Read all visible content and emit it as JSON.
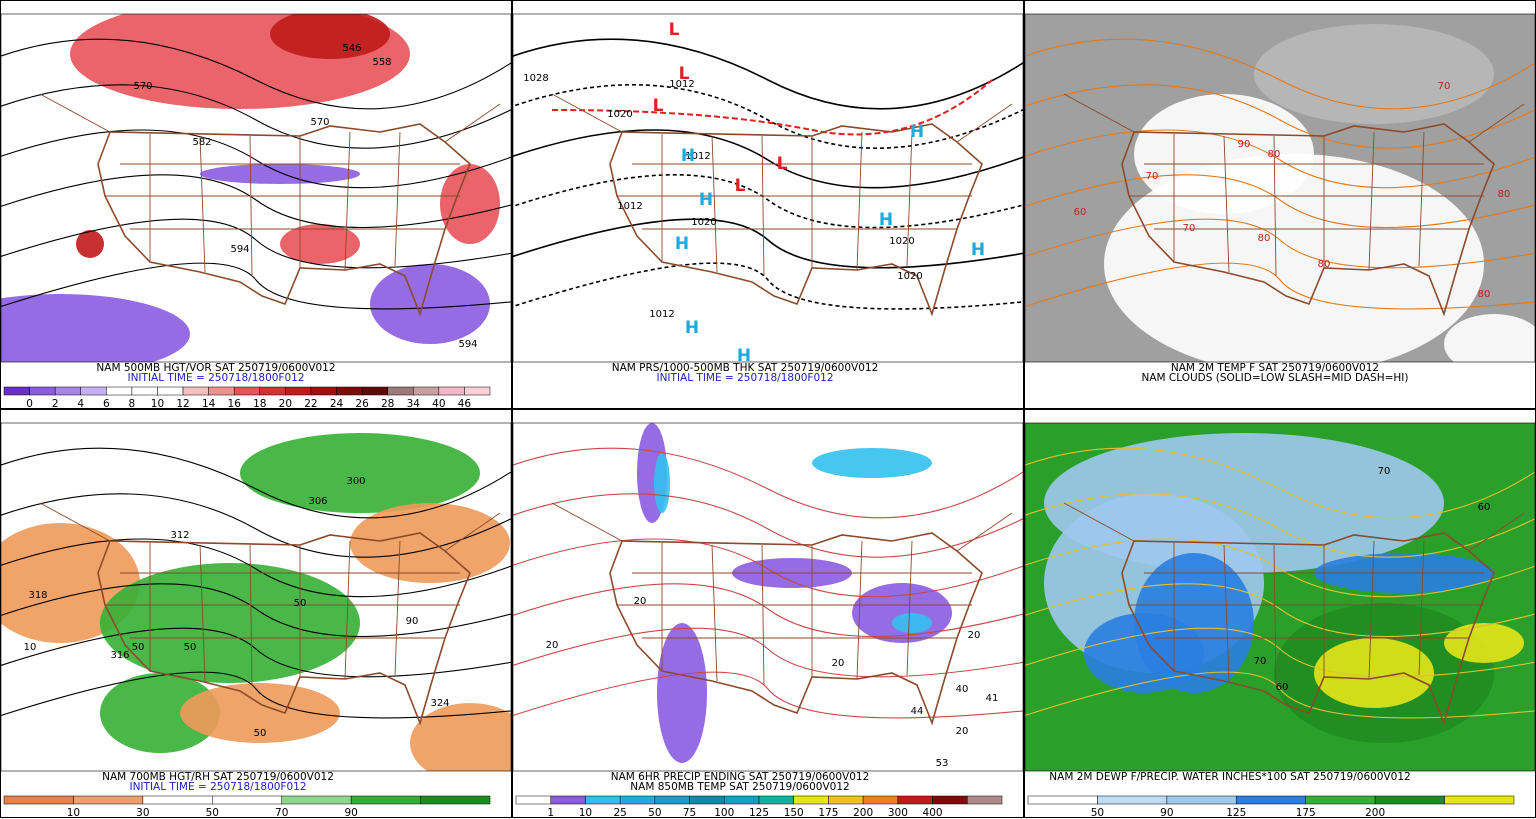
{
  "panels": [
    {
      "caption": [
        "NAM 500MB HGT/VOR SAT 250719/0600V012",
        "INITIAL TIME = 250718/1800F012"
      ],
      "colorbar_labels": [
        "0",
        "2",
        "4",
        "6",
        "8",
        "10",
        "12",
        "14",
        "16",
        "18",
        "20",
        "22",
        "24",
        "26",
        "28",
        "34",
        "40",
        "46"
      ],
      "map_labels": [
        "546",
        "558",
        "570",
        "570",
        "582",
        "594",
        "594"
      ]
    },
    {
      "caption": [
        "NAM PRS/1000-500MB THK SAT 250719/0600V012",
        "INITIAL TIME = 250718/1800F012"
      ],
      "colorbar_labels": [],
      "map_labels": [
        "1028",
        "1020",
        "1012",
        "1012",
        "1012",
        "1020",
        "1020",
        "1020",
        "1012",
        "L",
        "L",
        "L",
        "L",
        "L",
        "H",
        "H",
        "H",
        "H",
        "H",
        "H",
        "H",
        "H"
      ]
    },
    {
      "caption": [
        "NAM 2M TEMP F SAT 250719/0600V012",
        "NAM CLOUDS (SOLID=LOW SLASH=MID DASH=HI)"
      ],
      "colorbar_labels": [],
      "map_labels": [
        "80",
        "70",
        "60",
        "80",
        "80",
        "70",
        "80",
        "90",
        "80",
        "70"
      ]
    },
    {
      "caption": [
        "NAM 700MB HGT/RH SAT 250719/0600V012",
        "INITIAL TIME = 250718/1800F012"
      ],
      "colorbar_labels": [
        "10",
        "30",
        "50",
        "70",
        "90"
      ],
      "map_labels": [
        "318",
        "316",
        "312",
        "300",
        "306",
        "50",
        "50",
        "50",
        "90",
        "10",
        "324",
        "50"
      ]
    },
    {
      "caption": [
        "NAM 6HR PRECIP ENDING SAT 250719/0600V012",
        "NAM 850MB TEMP SAT 250719/0600V012"
      ],
      "colorbar_labels": [
        "1",
        "10",
        "25",
        "50",
        "75",
        "100",
        "125",
        "150",
        "175",
        "200",
        "300",
        "400"
      ],
      "map_labels": [
        "20",
        "20",
        "20",
        "20",
        "20",
        "40",
        "41",
        "44",
        "53"
      ]
    },
    {
      "caption": [
        "NAM 2M DEWP F/PRECIP. WATER INCHES*100 SAT 250719/0600V012"
      ],
      "colorbar_labels": [
        "50",
        "90",
        "125",
        "175",
        "200"
      ],
      "map_labels": [
        "70",
        "60",
        "70",
        "60"
      ]
    }
  ]
}
